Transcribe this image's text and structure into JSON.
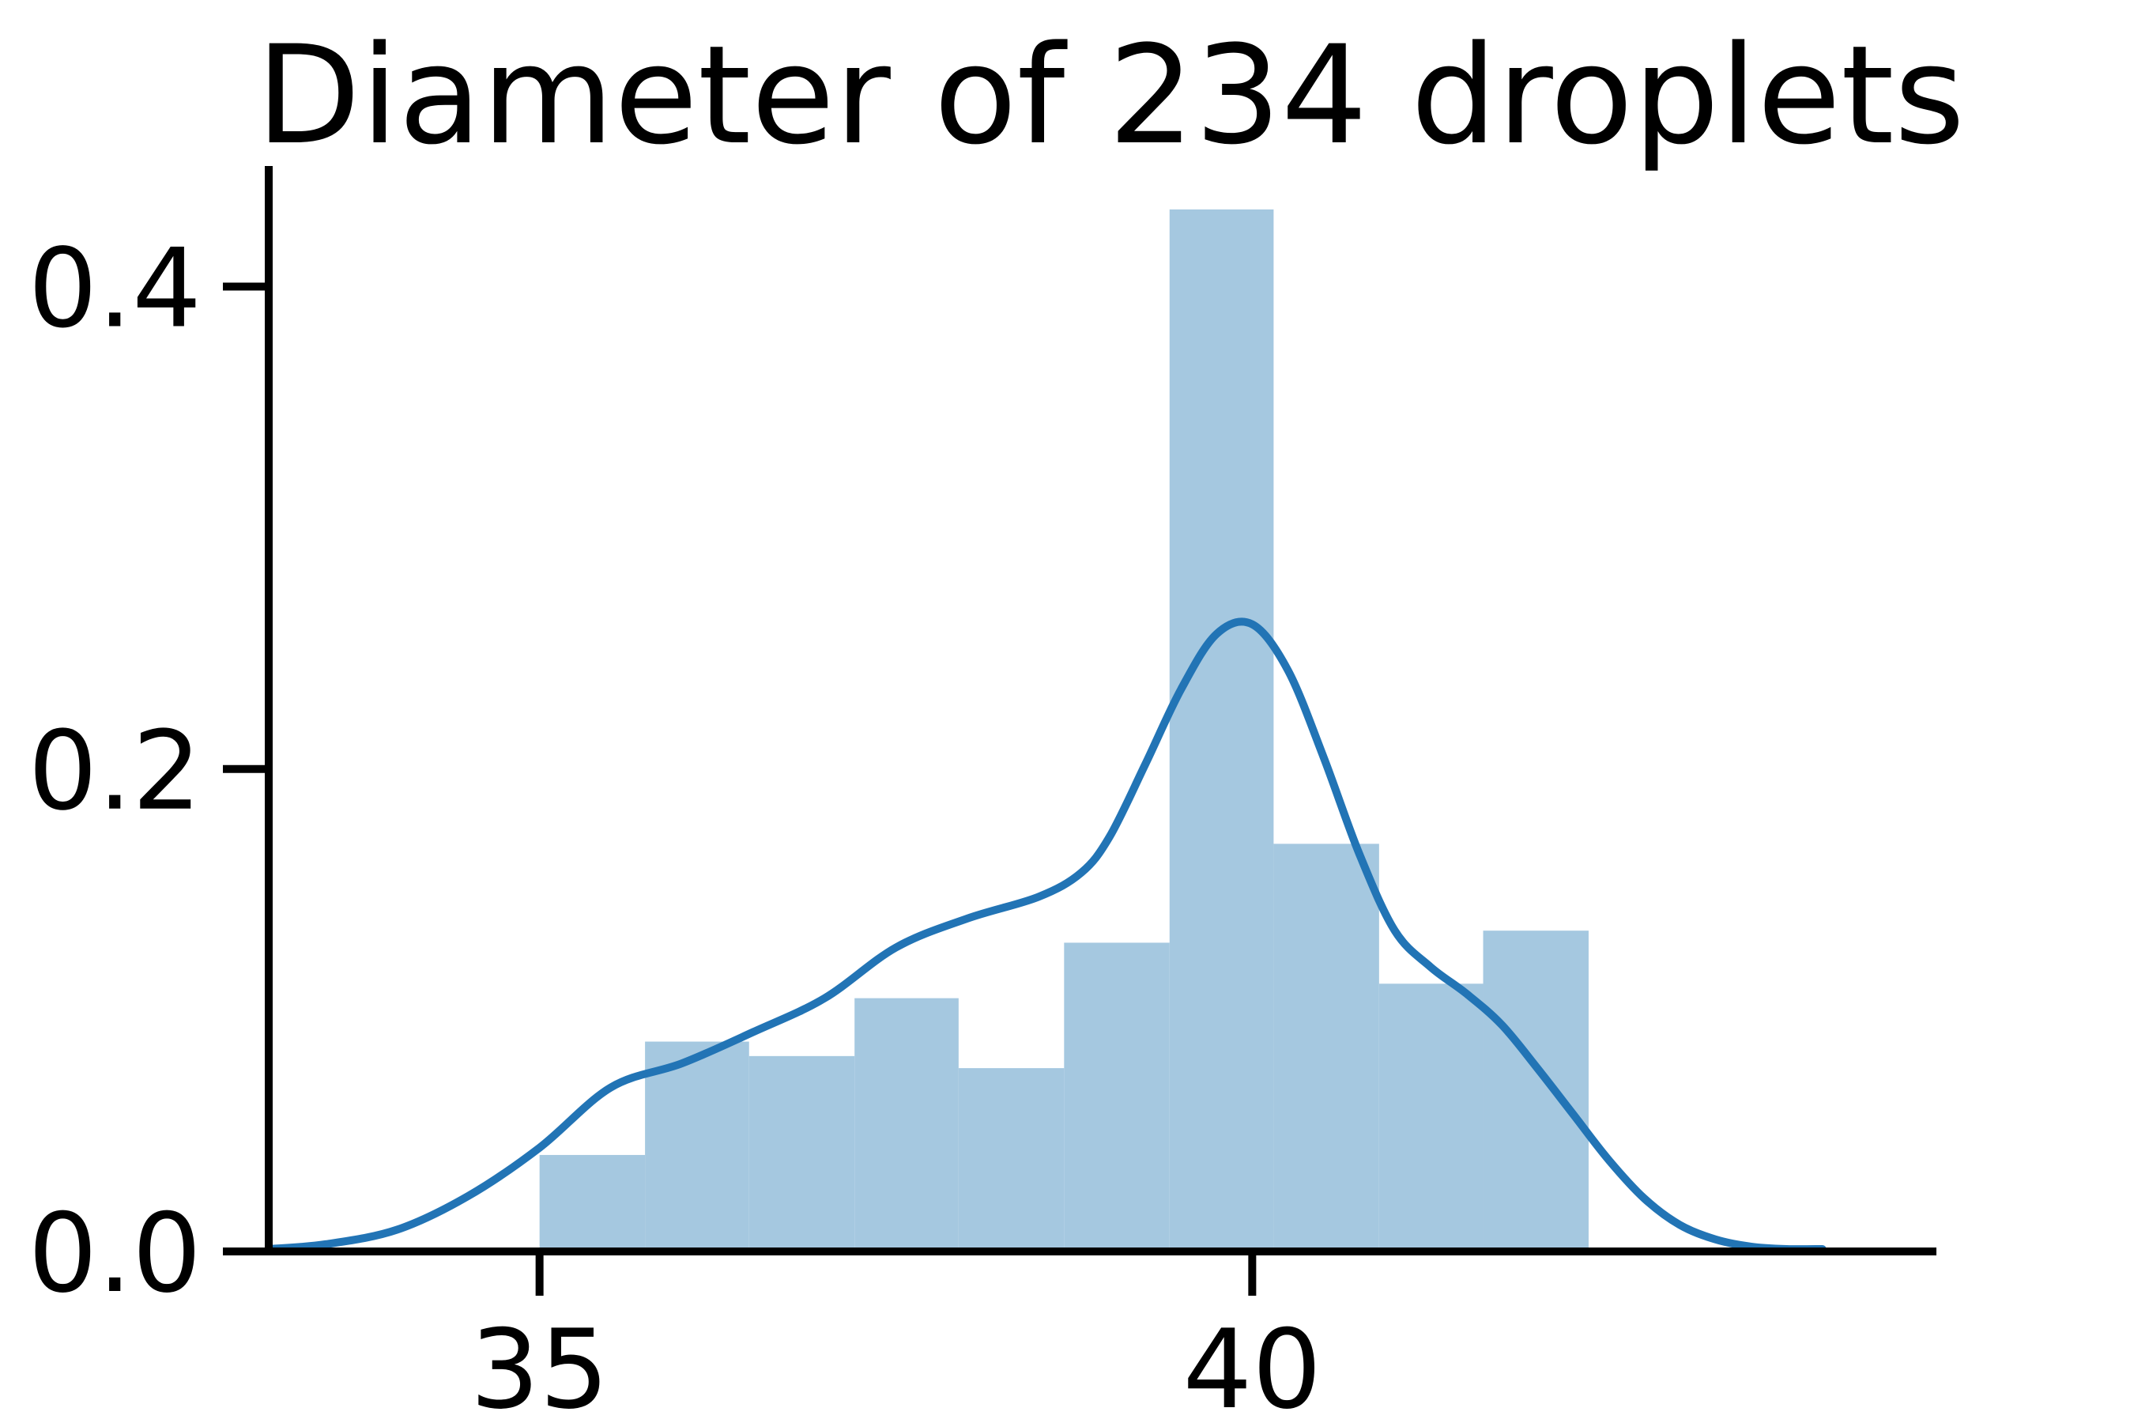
{
  "chart_data": {
    "type": "bar",
    "title": "Diameter of 234 droplets",
    "xlabel": "",
    "ylabel": "",
    "xlim": [
      33.1,
      44.8
    ],
    "ylim": [
      0,
      0.45
    ],
    "x_ticks": [
      35,
      40
    ],
    "x_tick_labels": [
      "35",
      "40"
    ],
    "y_ticks": [
      0.0,
      0.2,
      0.4
    ],
    "y_tick_labels": [
      "0.0",
      "0.2",
      "0.4"
    ],
    "grid": false,
    "bin_edges": [
      35.0,
      35.74,
      36.47,
      37.21,
      37.94,
      38.68,
      39.42,
      40.15,
      40.89,
      41.62,
      42.36
    ],
    "bin_heights": [
      0.04,
      0.087,
      0.081,
      0.105,
      0.076,
      0.128,
      0.432,
      0.169,
      0.111,
      0.133
    ],
    "kde": {
      "x": [
        33.1,
        33.5,
        34.0,
        34.5,
        35.0,
        35.5,
        36.0,
        36.5,
        37.0,
        37.5,
        38.0,
        38.5,
        38.8,
        39.0,
        39.25,
        39.5,
        39.75,
        40.0,
        40.25,
        40.5,
        40.75,
        41.0,
        41.25,
        41.5,
        41.75,
        42.0,
        42.25,
        42.5,
        42.75,
        43.0,
        43.25,
        43.5,
        43.75,
        44.0
      ],
      "y": [
        0.001,
        0.003,
        0.009,
        0.023,
        0.043,
        0.068,
        0.078,
        0.091,
        0.105,
        0.126,
        0.138,
        0.147,
        0.157,
        0.172,
        0.202,
        0.233,
        0.256,
        0.26,
        0.241,
        0.205,
        0.165,
        0.133,
        0.118,
        0.107,
        0.094,
        0.076,
        0.057,
        0.038,
        0.022,
        0.011,
        0.005,
        0.002,
        0.001,
        0.001
      ]
    },
    "colors": {
      "bars": "#a5c8e0",
      "kde_line": "#2274b5",
      "axes": "#000000"
    }
  }
}
